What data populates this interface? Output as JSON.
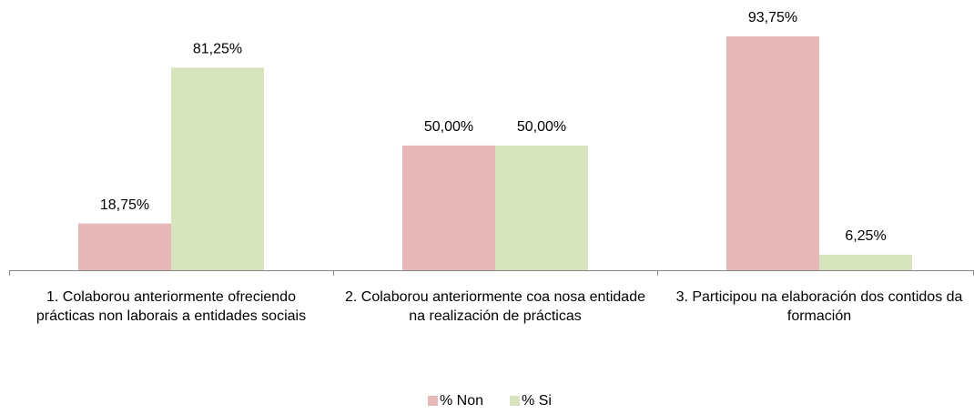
{
  "chart_data": {
    "type": "bar",
    "categories": [
      "1. Colaborou anteriormente ofreciendo prácticas non laborais a entidades sociais",
      "2. Colaborou anteriormente coa nosa entidade na realización de prácticas",
      "3. Participou na elaboración dos contidos da formación"
    ],
    "series": [
      {
        "name": "% Non",
        "color": "#e6b9b8",
        "values": [
          18.75,
          50,
          93.75
        ],
        "value_labels": [
          "18,75%",
          "50,00%",
          "93,75%"
        ]
      },
      {
        "name": "% Si",
        "color": "#d7e4bd",
        "values": [
          81.25,
          50,
          6.25
        ],
        "value_labels": [
          "81,25%",
          "50,00%",
          "6,25%"
        ]
      }
    ],
    "legend": "bottom"
  }
}
